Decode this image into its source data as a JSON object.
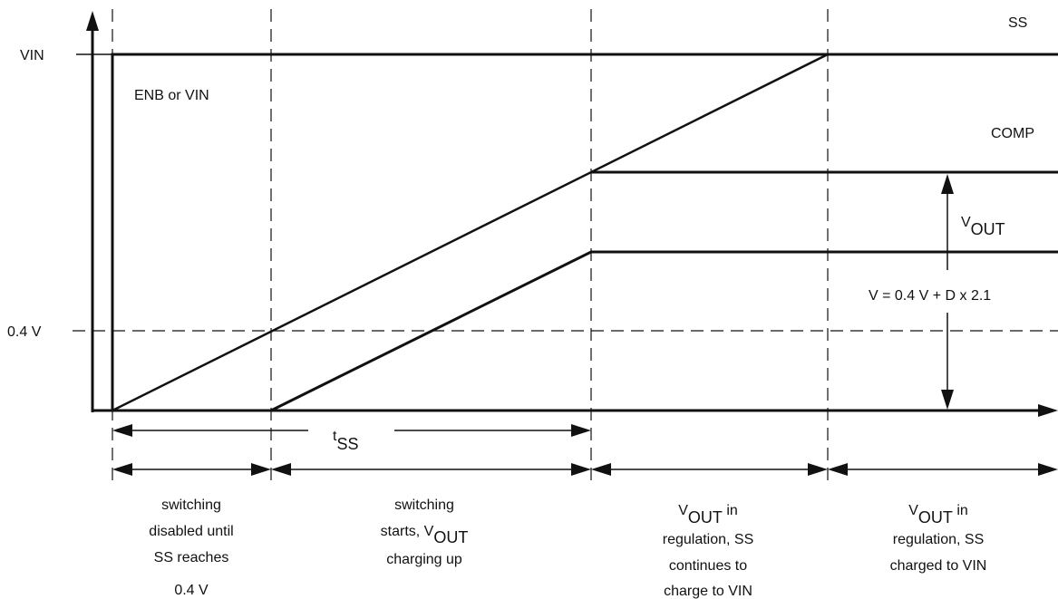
{
  "signals": {
    "ss": "SS",
    "comp": "COMP",
    "enb": "ENB or VIN"
  },
  "y_axis": {
    "vin": "VIN",
    "v04": "0.4  V"
  },
  "vout_label": {
    "main": "V",
    "sub": "OUT"
  },
  "equation": "V = 0.4 V + D x 2.1",
  "tss_label": {
    "main": "t",
    "sub": "SS"
  },
  "phases": [
    {
      "lines": [
        "switching",
        "disabled until",
        "SS reaches",
        "0.4  V"
      ]
    },
    {
      "line1": "switching",
      "line2_pre": "starts, V",
      "line2_sub": "OUT",
      "line3": "charging up"
    },
    {
      "line1_main": "V",
      "line1_sub": "OUT",
      "line1_post": " in",
      "lines": [
        "regulation, SS",
        "continues to",
        "charge to VIN"
      ]
    },
    {
      "line1_main": "V",
      "line1_sub": "OUT",
      "line1_post": " in",
      "lines": [
        "regulation, SS",
        "charged to VIN"
      ]
    }
  ]
}
